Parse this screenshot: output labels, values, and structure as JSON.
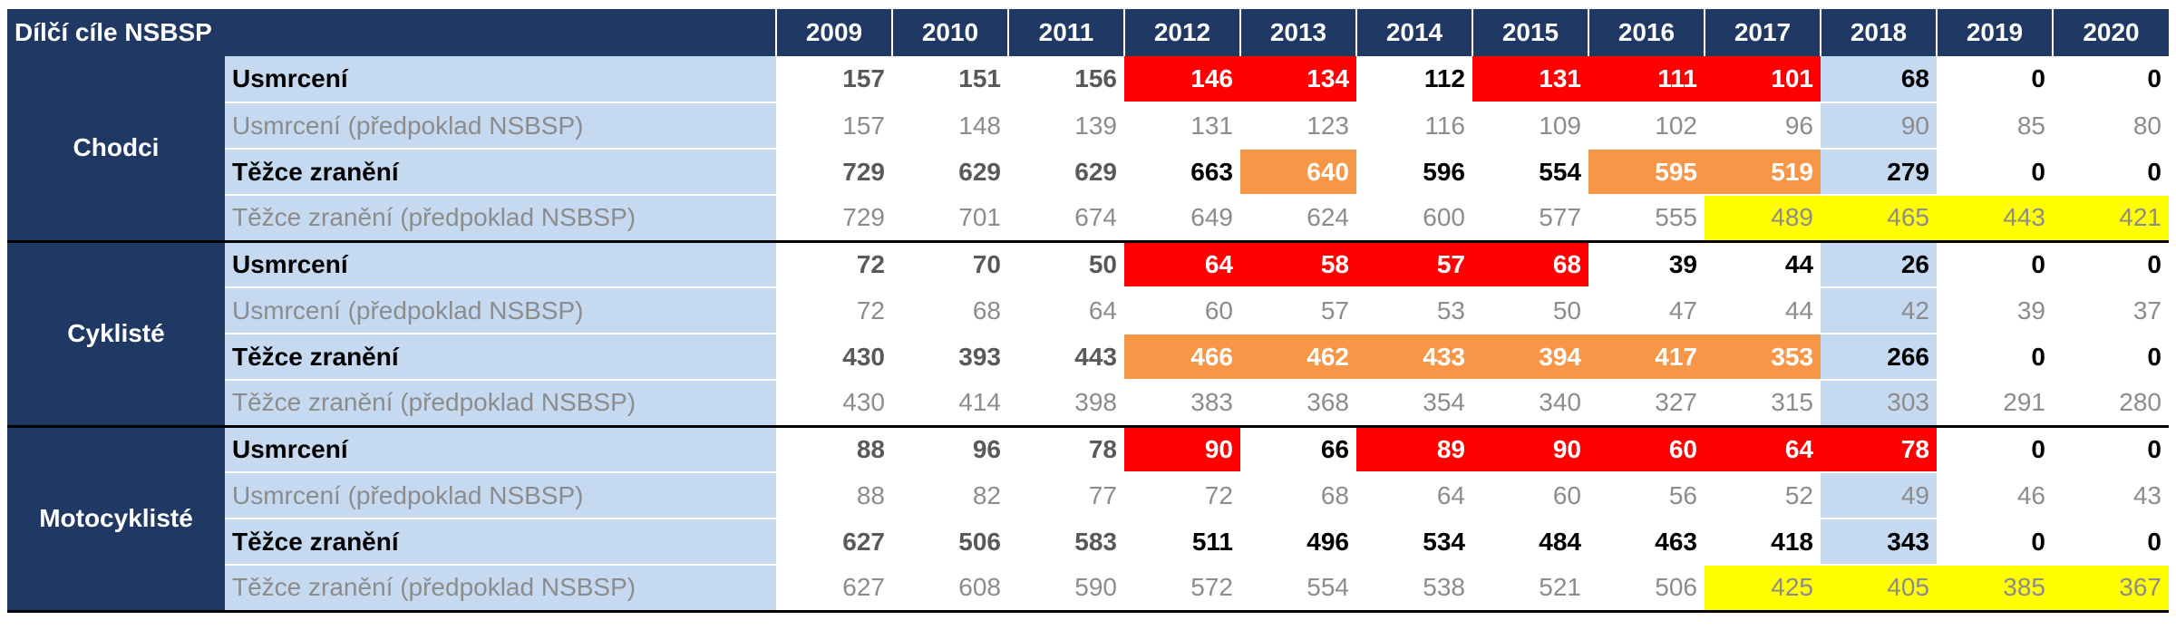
{
  "header": {
    "title": "Dílčí cíle NSBSP",
    "years": [
      "2009",
      "2010",
      "2011",
      "2012",
      "2013",
      "2014",
      "2015",
      "2016",
      "2017",
      "2018",
      "2019",
      "2020"
    ]
  },
  "table": {
    "groups": [
      {
        "name": "Chodci",
        "rows": [
          {
            "label": "Usmrcení",
            "values": [
              157,
              151,
              156,
              146,
              134,
              112,
              131,
              111,
              101,
              68,
              0,
              0
            ],
            "fills": [
              null,
              null,
              null,
              "red",
              "red",
              null,
              "red",
              "red",
              "red",
              "blue",
              null,
              null
            ]
          },
          {
            "label": "Usmrcení (předpoklad NSBSP)",
            "values": [
              157,
              148,
              139,
              131,
              123,
              116,
              109,
              102,
              96,
              90,
              85,
              80
            ],
            "fills": [
              null,
              null,
              null,
              null,
              null,
              null,
              null,
              null,
              null,
              "blue",
              null,
              null
            ]
          },
          {
            "label": "Těžce zranění",
            "values": [
              729,
              629,
              629,
              663,
              640,
              596,
              554,
              595,
              519,
              279,
              0,
              0
            ],
            "fills": [
              null,
              null,
              null,
              null,
              "orange",
              null,
              null,
              "orange",
              "orange",
              "blue",
              null,
              null
            ]
          },
          {
            "label": "Těžce zranění (předpoklad NSBSP)",
            "values": [
              729,
              701,
              674,
              649,
              624,
              600,
              577,
              555,
              489,
              465,
              443,
              421
            ],
            "fills": [
              null,
              null,
              null,
              null,
              null,
              null,
              null,
              null,
              "yellow",
              "yellow",
              "yellow",
              "yellow"
            ]
          }
        ]
      },
      {
        "name": "Cyklisté",
        "rows": [
          {
            "label": "Usmrcení",
            "values": [
              72,
              70,
              50,
              64,
              58,
              57,
              68,
              39,
              44,
              26,
              0,
              0
            ],
            "fills": [
              null,
              null,
              null,
              "red",
              "red",
              "red",
              "red",
              null,
              null,
              "blue",
              null,
              null
            ]
          },
          {
            "label": "Usmrcení (předpoklad NSBSP)",
            "values": [
              72,
              68,
              64,
              60,
              57,
              53,
              50,
              47,
              44,
              42,
              39,
              37
            ],
            "fills": [
              null,
              null,
              null,
              null,
              null,
              null,
              null,
              null,
              null,
              "blue",
              null,
              null
            ]
          },
          {
            "label": "Těžce zranění",
            "values": [
              430,
              393,
              443,
              466,
              462,
              433,
              394,
              417,
              353,
              266,
              0,
              0
            ],
            "fills": [
              null,
              null,
              null,
              "orange",
              "orange",
              "orange",
              "orange",
              "orange",
              "orange",
              "blue",
              null,
              null
            ]
          },
          {
            "label": "Těžce zranění (předpoklad NSBSP)",
            "values": [
              430,
              414,
              398,
              383,
              368,
              354,
              340,
              327,
              315,
              303,
              291,
              280
            ],
            "fills": [
              null,
              null,
              null,
              null,
              null,
              null,
              null,
              null,
              null,
              "blue",
              null,
              null
            ]
          }
        ]
      },
      {
        "name": "Motocyklisté",
        "rows": [
          {
            "label": "Usmrcení",
            "values": [
              88,
              96,
              78,
              90,
              66,
              89,
              90,
              60,
              64,
              78,
              0,
              0
            ],
            "fills": [
              null,
              null,
              null,
              "red",
              null,
              "red",
              "red",
              "red",
              "red",
              "red",
              null,
              null
            ]
          },
          {
            "label": "Usmrcení (předpoklad NSBSP)",
            "values": [
              88,
              82,
              77,
              72,
              68,
              64,
              60,
              56,
              52,
              49,
              46,
              43
            ],
            "fills": [
              null,
              null,
              null,
              null,
              null,
              null,
              null,
              null,
              null,
              "blue",
              null,
              null
            ]
          },
          {
            "label": "Těžce zranění",
            "values": [
              627,
              506,
              583,
              511,
              496,
              534,
              484,
              463,
              418,
              343,
              0,
              0
            ],
            "fills": [
              null,
              null,
              null,
              null,
              null,
              null,
              null,
              null,
              null,
              "blue",
              null,
              null
            ]
          },
          {
            "label": "Těžce zranění (předpoklad NSBSP)",
            "values": [
              627,
              608,
              590,
              572,
              554,
              538,
              521,
              506,
              425,
              405,
              385,
              367
            ],
            "fills": [
              null,
              null,
              null,
              null,
              null,
              null,
              null,
              null,
              "yellow",
              "yellow",
              "yellow",
              "yellow"
            ]
          }
        ]
      }
    ]
  }
}
